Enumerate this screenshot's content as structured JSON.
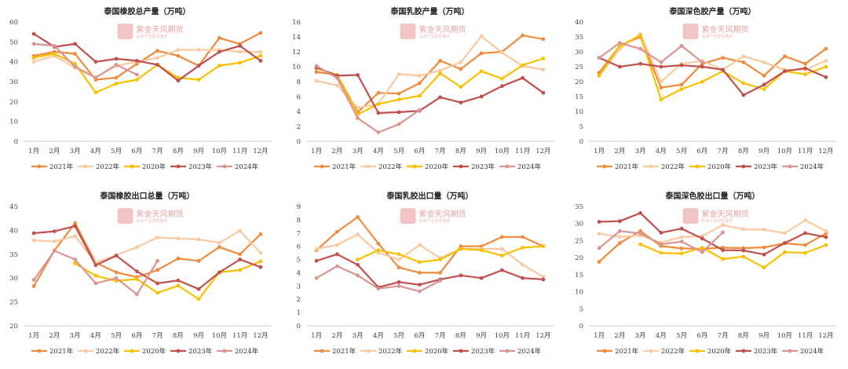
{
  "watermark": {
    "text": "紫金天风期货",
    "sub": "投资产业研究服务"
  },
  "colors": {
    "2021年": "#f08a3c",
    "2022年": "#f9c9a0",
    "2020年": "#f7c000",
    "2023年": "#c0504d",
    "2024年": "#d99594"
  },
  "chart_data": [
    {
      "type": "line",
      "title": "泰国橡胶总产量（万吨）",
      "categories": [
        "1月",
        "2月",
        "3月",
        "4月",
        "5月",
        "6月",
        "7月",
        "8月",
        "9月",
        "10月",
        "11月",
        "12月"
      ],
      "ylim": [
        0,
        60
      ],
      "yticks": [
        0,
        10,
        20,
        30,
        40,
        50,
        60
      ],
      "series": [
        {
          "name": "2021年",
          "values": [
            43,
            45,
            44,
            31,
            32,
            39,
            45.5,
            43,
            38,
            52,
            49,
            54.5
          ]
        },
        {
          "name": "2022年",
          "values": [
            40,
            43,
            37,
            32,
            38,
            40,
            42,
            46,
            46,
            46,
            45,
            45
          ]
        },
        {
          "name": "2020年",
          "values": [
            42,
            44,
            39,
            24.5,
            29,
            31,
            38.5,
            32,
            31,
            38,
            39.5,
            43
          ]
        },
        {
          "name": "2023年",
          "values": [
            54,
            47.5,
            49,
            40,
            41.5,
            40.5,
            38.5,
            30.5,
            38,
            45,
            48,
            40.5
          ]
        },
        {
          "name": "2024年",
          "values": [
            49,
            48,
            37.5,
            32,
            38.5,
            33.5,
            null,
            null,
            null,
            null,
            null,
            null
          ]
        }
      ]
    },
    {
      "type": "line",
      "title": "泰国乳胶产量（万吨）",
      "categories": [
        "1月",
        "2月",
        "3月",
        "4月",
        "5月",
        "6月",
        "7月",
        "8月",
        "9月",
        "10月",
        "11月",
        "12月"
      ],
      "ylim": [
        0,
        16
      ],
      "yticks": [
        0,
        2,
        4,
        6,
        8,
        10,
        12,
        14,
        16
      ],
      "series": [
        {
          "name": "2021年",
          "values": [
            9.3,
            8.9,
            3.9,
            6.5,
            6.4,
            7.8,
            10.8,
            9.7,
            11.8,
            12.0,
            14.2,
            13.7
          ]
        },
        {
          "name": "2022年",
          "values": [
            8.1,
            7.5,
            4.5,
            5.0,
            9.0,
            8.8,
            9.5,
            10.6,
            14.1,
            11.9,
            10.1,
            9.6
          ]
        },
        {
          "name": "2020年",
          "values": [
            9.8,
            8.9,
            3.6,
            5.0,
            5.6,
            6.1,
            9.1,
            7.3,
            9.4,
            8.4,
            10.2,
            11.1
          ]
        },
        {
          "name": "2023年",
          "values": [
            9.9,
            8.8,
            8.9,
            3.8,
            3.9,
            4.1,
            5.9,
            5.2,
            6.0,
            7.4,
            8.5,
            6.5
          ]
        },
        {
          "name": "2024年",
          "values": [
            10.1,
            8.5,
            3.1,
            1.2,
            2.3,
            4.2,
            null,
            null,
            null,
            null,
            null,
            null
          ]
        }
      ]
    },
    {
      "type": "line",
      "title": "泰国深色胶产量（万吨）",
      "categories": [
        "1月",
        "2月",
        "3月",
        "4月",
        "5月",
        "6月",
        "7月",
        "8月",
        "9月",
        "10月",
        "11月",
        "12月"
      ],
      "ylim": [
        0,
        40
      ],
      "yticks": [
        0,
        5,
        10,
        15,
        20,
        25,
        30,
        35,
        40
      ],
      "series": [
        {
          "name": "2021年",
          "values": [
            23,
            32,
            35,
            18,
            19,
            26,
            28,
            26.5,
            22,
            28.5,
            26,
            31
          ]
        },
        {
          "name": "2022年",
          "values": [
            22,
            31,
            36,
            20,
            26,
            27,
            24,
            28.5,
            26.5,
            24,
            24,
            27
          ]
        },
        {
          "name": "2020年",
          "values": [
            22,
            32,
            35.5,
            14,
            17.5,
            20,
            23.5,
            19.5,
            17.5,
            23.5,
            22.5,
            25
          ]
        },
        {
          "name": "2023年",
          "values": [
            28,
            25,
            26,
            25,
            25.5,
            25,
            24,
            15.5,
            19,
            23.5,
            24.5,
            21.5
          ]
        },
        {
          "name": "2024年",
          "values": [
            28,
            33,
            31,
            26.5,
            32,
            26.5,
            null,
            null,
            null,
            null,
            null,
            null
          ]
        }
      ]
    },
    {
      "type": "line",
      "title": "泰国橡胶出口总量（万吨）",
      "categories": [
        "1月",
        "2月",
        "3月",
        "4月",
        "5月",
        "6月",
        "7月",
        "8月",
        "9月",
        "10月",
        "11月",
        "12月"
      ],
      "ylim": [
        20,
        45
      ],
      "yticks": [
        20,
        25,
        30,
        35,
        40,
        45
      ],
      "series": [
        {
          "name": "2021年",
          "values": [
            28.3,
            35.8,
            41.5,
            33.2,
            31.2,
            30.2,
            31.7,
            34.1,
            33.6,
            36.5,
            35.0,
            39.2
          ]
        },
        {
          "name": "2022年",
          "values": [
            37.9,
            37.7,
            38.8,
            33.2,
            34.8,
            36.5,
            38.5,
            38.3,
            38.1,
            37.4,
            39.9,
            35.3
          ]
        },
        {
          "name": "2020年",
          "values": [
            null,
            null,
            33.1,
            30.5,
            29.4,
            29.8,
            26.9,
            28.4,
            25.6,
            31.2,
            31.7,
            33.5
          ]
        },
        {
          "name": "2023年",
          "values": [
            39.4,
            39.8,
            40.9,
            32.7,
            34.7,
            31.4,
            28.9,
            29.5,
            27.7,
            31.2,
            33.9,
            32.3
          ]
        },
        {
          "name": "2024年",
          "values": [
            29.6,
            35.7,
            33.9,
            28.9,
            30.0,
            26.6,
            33.6,
            null,
            null,
            null,
            null,
            null
          ]
        }
      ]
    },
    {
      "type": "line",
      "title": "泰国乳胶出口量（万吨）",
      "categories": [
        "1月",
        "2月",
        "3月",
        "4月",
        "5月",
        "6月",
        "7月",
        "8月",
        "9月",
        "10月",
        "11月",
        "12月"
      ],
      "ylim": [
        0,
        9
      ],
      "yticks": [
        0,
        1,
        2,
        3,
        4,
        5,
        6,
        7,
        8,
        9
      ],
      "series": [
        {
          "name": "2021年",
          "values": [
            5.7,
            7.1,
            8.2,
            6.2,
            4.4,
            4.0,
            4.0,
            6.0,
            6.0,
            6.7,
            6.7,
            6.0
          ]
        },
        {
          "name": "2022年",
          "values": [
            5.8,
            6.1,
            6.9,
            5.5,
            5.0,
            6.1,
            5.1,
            5.8,
            5.8,
            5.8,
            4.6,
            3.7
          ]
        },
        {
          "name": "2020年",
          "values": [
            null,
            null,
            5.0,
            5.7,
            5.4,
            4.8,
            5.0,
            5.8,
            5.7,
            5.3,
            5.9,
            6.0
          ]
        },
        {
          "name": "2023年",
          "values": [
            4.9,
            5.4,
            4.6,
            2.9,
            3.3,
            3.1,
            3.5,
            3.8,
            3.6,
            4.2,
            3.6,
            3.5
          ]
        },
        {
          "name": "2024年",
          "values": [
            3.6,
            4.5,
            3.8,
            2.8,
            3.0,
            2.6,
            3.4,
            null,
            null,
            null,
            null,
            null
          ]
        }
      ]
    },
    {
      "type": "line",
      "title": "泰国深色胶出口量（万吨）",
      "categories": [
        "1月",
        "2月",
        "3月",
        "4月",
        "5月",
        "6月",
        "7月",
        "8月",
        "9月",
        "10月",
        "11月",
        "12月"
      ],
      "ylim": [
        0,
        35
      ],
      "yticks": [
        0,
        5,
        10,
        15,
        20,
        25,
        30,
        35
      ],
      "series": [
        {
          "name": "2021年",
          "values": [
            18.8,
            24.3,
            27.8,
            23.4,
            22.7,
            22.6,
            22.9,
            22.8,
            23.0,
            24.2,
            23.7,
            27.1
          ]
        },
        {
          "name": "2022年",
          "values": [
            27.0,
            26.1,
            26.5,
            24.4,
            26.0,
            26.3,
            29.6,
            28.3,
            28.2,
            27.2,
            31.0,
            27.8
          ]
        },
        {
          "name": "2020年",
          "values": [
            null,
            null,
            23.9,
            21.4,
            21.2,
            22.9,
            19.6,
            20.3,
            17.1,
            21.6,
            21.4,
            23.7
          ]
        },
        {
          "name": "2023年",
          "values": [
            30.5,
            30.7,
            33.1,
            27.3,
            28.5,
            25.6,
            22.2,
            22.1,
            20.9,
            24.3,
            27.2,
            26.0
          ]
        },
        {
          "name": "2024年",
          "values": [
            22.8,
            27.8,
            27.1,
            23.9,
            24.7,
            21.6,
            27.4,
            null,
            null,
            null,
            null,
            null
          ]
        }
      ]
    }
  ]
}
